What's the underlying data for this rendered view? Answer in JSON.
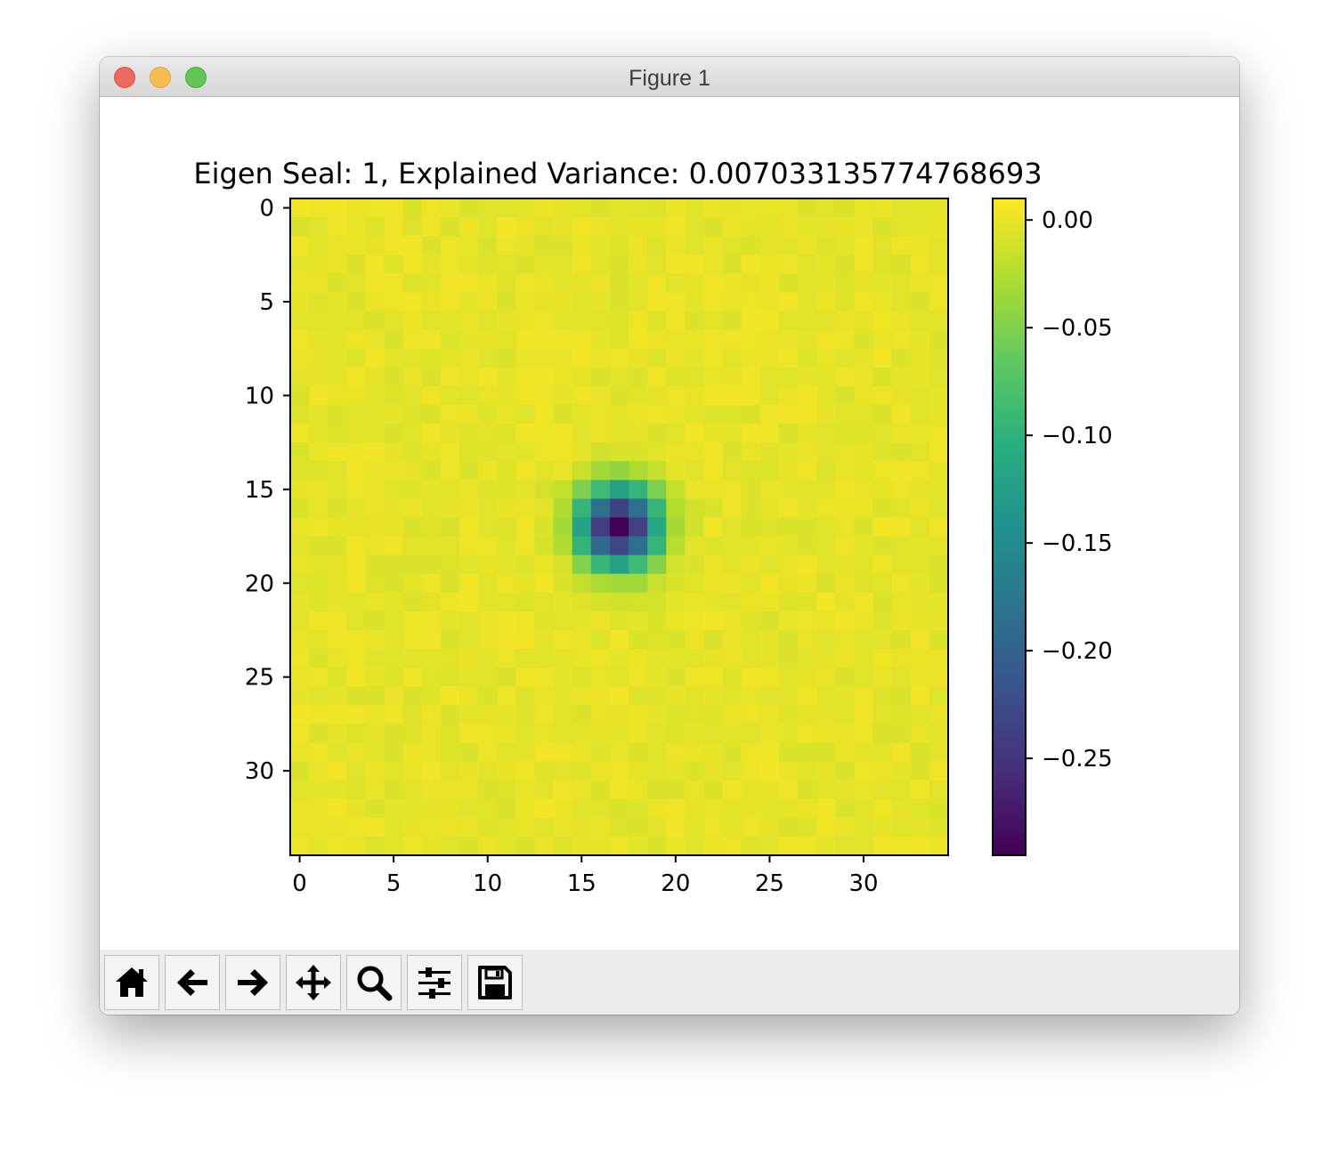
{
  "window": {
    "title": "Figure 1"
  },
  "toolbar": {
    "buttons": [
      {
        "name": "home-button",
        "icon": "home-icon"
      },
      {
        "name": "back-button",
        "icon": "arrow-left-icon"
      },
      {
        "name": "forward-button",
        "icon": "arrow-right-icon"
      },
      {
        "name": "pan-button",
        "icon": "move-icon"
      },
      {
        "name": "zoom-button",
        "icon": "magnifier-icon"
      },
      {
        "name": "configure-subplots-button",
        "icon": "sliders-icon"
      },
      {
        "name": "save-button",
        "icon": "floppy-disk-icon"
      }
    ]
  },
  "chart_data": {
    "type": "heatmap",
    "title": "Eigen Seal: 1, Explained Variance: 0.007033135774768693",
    "colormap": "viridis",
    "shape": [
      35,
      35
    ],
    "x_ticks": [
      0,
      5,
      10,
      15,
      20,
      25,
      30
    ],
    "y_ticks": [
      0,
      5,
      10,
      15,
      20,
      25,
      30
    ],
    "xlim": [
      -0.5,
      34.5
    ],
    "ylim": [
      34.5,
      -0.5
    ],
    "colorbar": {
      "range": [
        -0.295,
        0.01
      ],
      "ticks": [
        0.0,
        -0.05,
        -0.1,
        -0.15,
        -0.2,
        -0.25
      ],
      "tick_labels": [
        "0.00",
        "−0.05",
        "−0.10",
        "−0.15",
        "−0.20",
        "−0.25"
      ]
    },
    "feature": {
      "type": "dark-spot",
      "center_row": 17,
      "center_col": 17,
      "min_value": -0.295,
      "background_value": 0.005
    }
  }
}
